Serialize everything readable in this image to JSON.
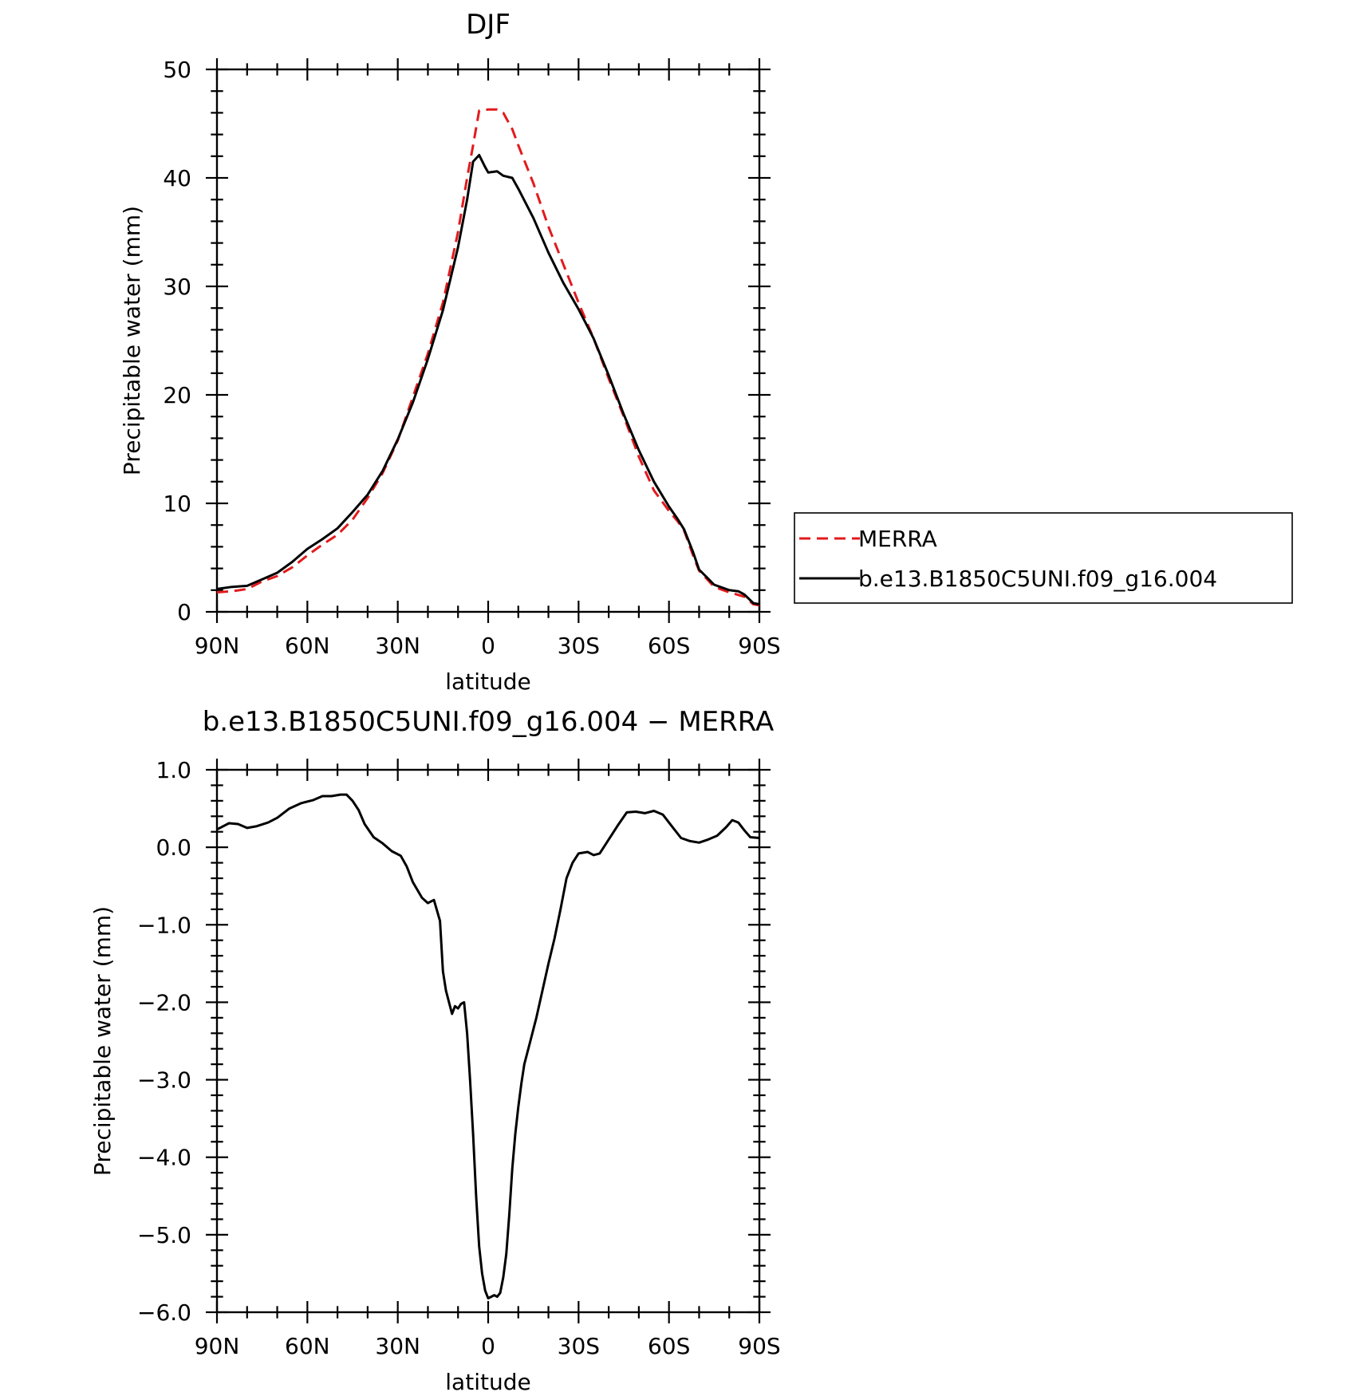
{
  "chart_data": [
    {
      "type": "line",
      "title": "DJF",
      "xlabel": "latitude",
      "ylabel": "Precipitable water (mm)",
      "xlim": [
        90,
        -90
      ],
      "ylim": [
        0,
        50
      ],
      "x_ticks": [
        {
          "value": 90,
          "label": "90N"
        },
        {
          "value": 60,
          "label": "60N"
        },
        {
          "value": 30,
          "label": "30N"
        },
        {
          "value": 0,
          "label": "0"
        },
        {
          "value": -30,
          "label": "30S"
        },
        {
          "value": -60,
          "label": "60S"
        },
        {
          "value": -90,
          "label": "90S"
        }
      ],
      "y_ticks": [
        {
          "value": 0,
          "label": "0"
        },
        {
          "value": 10,
          "label": "10"
        },
        {
          "value": 20,
          "label": "20"
        },
        {
          "value": 30,
          "label": "30"
        },
        {
          "value": 40,
          "label": "40"
        },
        {
          "value": 50,
          "label": "50"
        }
      ],
      "legend_position": "right",
      "series": [
        {
          "name": "MERRA",
          "color": "#e31a1c",
          "dash": "dashed",
          "points": [
            [
              90,
              1.8
            ],
            [
              85,
              1.9
            ],
            [
              80,
              2.1
            ],
            [
              75,
              2.8
            ],
            [
              70,
              3.3
            ],
            [
              65,
              4.1
            ],
            [
              60,
              5.2
            ],
            [
              55,
              6.2
            ],
            [
              50,
              7.1
            ],
            [
              45,
              8.5
            ],
            [
              40,
              10.5
            ],
            [
              35,
              12.8
            ],
            [
              30,
              15.8
            ],
            [
              25,
              19.8
            ],
            [
              20,
              23.8
            ],
            [
              15,
              28.5
            ],
            [
              10,
              35
            ],
            [
              7,
              40
            ],
            [
              5,
              43
            ],
            [
              3,
              46.2
            ],
            [
              0,
              46.3
            ],
            [
              -3,
              46.3
            ],
            [
              -5,
              46
            ],
            [
              -8,
              44.5
            ],
            [
              -10,
              43
            ],
            [
              -15,
              39.5
            ],
            [
              -20,
              35.5
            ],
            [
              -25,
              32
            ],
            [
              -30,
              28.5
            ],
            [
              -35,
              25.2
            ],
            [
              -40,
              21.5
            ],
            [
              -45,
              18
            ],
            [
              -50,
              14.3
            ],
            [
              -55,
              11.2
            ],
            [
              -60,
              9.3
            ],
            [
              -63,
              8.3
            ],
            [
              -65,
              7.5
            ],
            [
              -68,
              5.2
            ],
            [
              -70,
              3.8
            ],
            [
              -75,
              2.3
            ],
            [
              -80,
              1.8
            ],
            [
              -85,
              1.4
            ],
            [
              -88,
              0.7
            ],
            [
              -90,
              0.6
            ]
          ]
        },
        {
          "name": "b.e13.B1850C5UNI.f09_g16.004",
          "color": "#000000",
          "dash": "solid",
          "points": [
            [
              90,
              2.1
            ],
            [
              85,
              2.3
            ],
            [
              80,
              2.4
            ],
            [
              75,
              3
            ],
            [
              70,
              3.6
            ],
            [
              65,
              4.6
            ],
            [
              60,
              5.8
            ],
            [
              55,
              6.7
            ],
            [
              50,
              7.7
            ],
            [
              45,
              9.2
            ],
            [
              40,
              10.8
            ],
            [
              35,
              13
            ],
            [
              30,
              15.9
            ],
            [
              25,
              19.3
            ],
            [
              20,
              23.3
            ],
            [
              15,
              27.8
            ],
            [
              10,
              33.6
            ],
            [
              7,
              38
            ],
            [
              5,
              41.5
            ],
            [
              3,
              42.1
            ],
            [
              1,
              41
            ],
            [
              0,
              40.5
            ],
            [
              -3,
              40.6
            ],
            [
              -5,
              40.2
            ],
            [
              -8,
              40
            ],
            [
              -10,
              39
            ],
            [
              -15,
              36.3
            ],
            [
              -20,
              33.1
            ],
            [
              -25,
              30.3
            ],
            [
              -30,
              27.9
            ],
            [
              -35,
              25.2
            ],
            [
              -40,
              21.8
            ],
            [
              -45,
              18.2
            ],
            [
              -50,
              14.9
            ],
            [
              -55,
              12
            ],
            [
              -60,
              9.7
            ],
            [
              -63,
              8.5
            ],
            [
              -65,
              7.6
            ],
            [
              -68,
              5.5
            ],
            [
              -70,
              3.9
            ],
            [
              -75,
              2.5
            ],
            [
              -80,
              2
            ],
            [
              -83,
              1.9
            ],
            [
              -85,
              1.6
            ],
            [
              -88,
              0.8
            ],
            [
              -90,
              0.7
            ]
          ]
        }
      ]
    },
    {
      "type": "line",
      "title": "b.e13.B1850C5UNI.f09_g16.004 - MERRA",
      "xlabel": "latitude",
      "ylabel": "Precipitable water (mm)",
      "xlim": [
        90,
        -90
      ],
      "ylim": [
        -6,
        1
      ],
      "x_ticks": [
        {
          "value": 90,
          "label": "90N"
        },
        {
          "value": 60,
          "label": "60N"
        },
        {
          "value": 30,
          "label": "30N"
        },
        {
          "value": 0,
          "label": "0"
        },
        {
          "value": -30,
          "label": "30S"
        },
        {
          "value": -60,
          "label": "60S"
        },
        {
          "value": -90,
          "label": "90S"
        }
      ],
      "y_ticks": [
        {
          "value": 1,
          "label": "1.0"
        },
        {
          "value": 0,
          "label": "0.0"
        },
        {
          "value": -1,
          "label": "-1.0"
        },
        {
          "value": -2,
          "label": "-2.0"
        },
        {
          "value": -3,
          "label": "-3.0"
        },
        {
          "value": -4,
          "label": "-4.0"
        },
        {
          "value": -5,
          "label": "-5.0"
        },
        {
          "value": -6,
          "label": "-6.0"
        }
      ],
      "series": [
        {
          "color": "#000000",
          "dash": "solid",
          "points": [
            [
              90,
              0.23
            ],
            [
              86,
              0.31
            ],
            [
              83,
              0.3
            ],
            [
              80,
              0.25
            ],
            [
              77,
              0.27
            ],
            [
              73,
              0.32
            ],
            [
              70,
              0.38
            ],
            [
              66,
              0.5
            ],
            [
              62,
              0.57
            ],
            [
              58,
              0.61
            ],
            [
              55,
              0.66
            ],
            [
              52,
              0.66
            ],
            [
              49,
              0.68
            ],
            [
              47,
              0.68
            ],
            [
              45,
              0.6
            ],
            [
              43,
              0.48
            ],
            [
              41,
              0.3
            ],
            [
              38,
              0.13
            ],
            [
              35,
              0.05
            ],
            [
              32,
              -0.05
            ],
            [
              29,
              -0.11
            ],
            [
              27,
              -0.25
            ],
            [
              25,
              -0.45
            ],
            [
              22,
              -0.65
            ],
            [
              20,
              -0.72
            ],
            [
              18,
              -0.68
            ],
            [
              16,
              -0.95
            ],
            [
              15,
              -1.6
            ],
            [
              14,
              -1.85
            ],
            [
              12,
              -2.15
            ],
            [
              11,
              -2.05
            ],
            [
              10,
              -2.08
            ],
            [
              9,
              -2.02
            ],
            [
              8,
              -2.0
            ],
            [
              7,
              -2.4
            ],
            [
              6,
              -3.0
            ],
            [
              5,
              -3.7
            ],
            [
              4,
              -4.5
            ],
            [
              3,
              -5.15
            ],
            [
              2,
              -5.5
            ],
            [
              1,
              -5.72
            ],
            [
              0,
              -5.82
            ],
            [
              -1,
              -5.8
            ],
            [
              -2,
              -5.78
            ],
            [
              -3,
              -5.8
            ],
            [
              -4,
              -5.75
            ],
            [
              -5,
              -5.55
            ],
            [
              -6,
              -5.25
            ],
            [
              -7,
              -4.75
            ],
            [
              -8,
              -4.15
            ],
            [
              -9,
              -3.7
            ],
            [
              -10,
              -3.35
            ],
            [
              -11,
              -3.05
            ],
            [
              -12,
              -2.8
            ],
            [
              -14,
              -2.5
            ],
            [
              -16,
              -2.2
            ],
            [
              -18,
              -1.85
            ],
            [
              -20,
              -1.5
            ],
            [
              -22,
              -1.18
            ],
            [
              -24,
              -0.8
            ],
            [
              -26,
              -0.4
            ],
            [
              -28,
              -0.2
            ],
            [
              -30,
              -0.08
            ],
            [
              -33,
              -0.06
            ],
            [
              -35,
              -0.1
            ],
            [
              -37,
              -0.08
            ],
            [
              -40,
              0.1
            ],
            [
              -43,
              0.28
            ],
            [
              -46,
              0.45
            ],
            [
              -49,
              0.46
            ],
            [
              -52,
              0.44
            ],
            [
              -55,
              0.47
            ],
            [
              -58,
              0.42
            ],
            [
              -61,
              0.27
            ],
            [
              -64,
              0.12
            ],
            [
              -67,
              0.08
            ],
            [
              -70,
              0.06
            ],
            [
              -73,
              0.1
            ],
            [
              -76,
              0.15
            ],
            [
              -79,
              0.26
            ],
            [
              -81,
              0.35
            ],
            [
              -83,
              0.32
            ],
            [
              -85,
              0.22
            ],
            [
              -87,
              0.13
            ],
            [
              -90,
              0.12
            ]
          ]
        }
      ]
    }
  ]
}
